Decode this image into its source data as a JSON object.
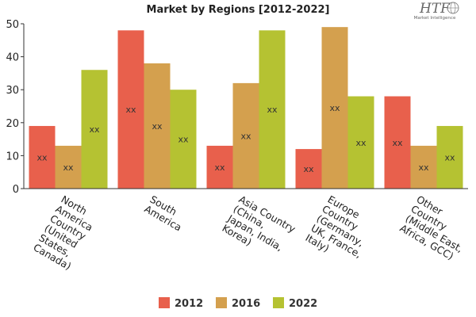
{
  "logo": {
    "text": "HTF",
    "subtext": "Market Intelligence"
  },
  "chart_data": {
    "type": "bar",
    "title": "Market by Regions [2012-2022]",
    "xlabel": "",
    "ylabel": "",
    "ylim": [
      0,
      50
    ],
    "yticks": [
      0,
      10,
      20,
      30,
      40,
      50
    ],
    "grid": false,
    "legend_position": "bottom",
    "categories": [
      "North America Country (United States, Canada)",
      "South America",
      "Asia Country (China, Japan, India, Korea)",
      "Europe Country (Germany, UK, France, Italy)",
      "Other Country (Middle East, Africa, GCC)"
    ],
    "category_label_lines": [
      [
        "North",
        "America",
        "Country",
        "(United",
        "States,",
        "Canada)"
      ],
      [
        "South",
        "America"
      ],
      [
        "Asia Country",
        "(China,",
        "Japan, India,",
        "Korea)"
      ],
      [
        "Europe",
        "Country",
        "(Germany,",
        "UK, France,",
        "Italy)"
      ],
      [
        "Other",
        "Country",
        "(Middle East,",
        "Africa, GCC)"
      ]
    ],
    "series": [
      {
        "name": "2012",
        "color": "#e8604c",
        "values": [
          19,
          48,
          13,
          12,
          28
        ]
      },
      {
        "name": "2016",
        "color": "#d4a04e",
        "values": [
          13,
          38,
          32,
          49,
          13
        ]
      },
      {
        "name": "2022",
        "color": "#b5c232",
        "values": [
          36,
          30,
          48,
          28,
          19
        ]
      }
    ],
    "data_label": "xx"
  }
}
